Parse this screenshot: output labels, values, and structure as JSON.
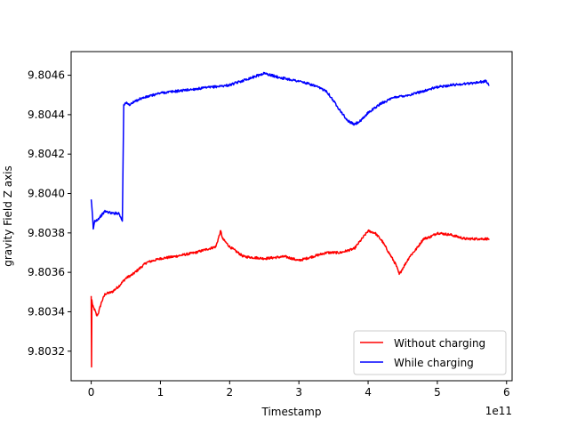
{
  "chart_data": {
    "type": "line",
    "title": "",
    "xlabel": "Timestamp",
    "ylabel": "gravity Field Z axis",
    "x_offset_label": "1e11",
    "xlim": [
      -0.29,
      6.08
    ],
    "ylim": [
      9.80305,
      9.80472
    ],
    "xticks": [
      0,
      1,
      2,
      3,
      4,
      5,
      6
    ],
    "xtick_labels": [
      "0",
      "1",
      "2",
      "3",
      "4",
      "5",
      "6"
    ],
    "yticks": [
      9.8032,
      9.8034,
      9.8036,
      9.8038,
      9.804,
      9.8042,
      9.8044,
      9.8046
    ],
    "ytick_labels": [
      "9.8032",
      "9.8034",
      "9.8036",
      "9.8038",
      "9.8040",
      "9.8042",
      "9.8044",
      "9.8046"
    ],
    "grid": false,
    "legend_position": "lower-right",
    "series": [
      {
        "name": "Without charging",
        "color": "#ff0000",
        "noise": 6e-06,
        "x": [
          0,
          0.005,
          0.01,
          0.02,
          0.05,
          0.08,
          0.1,
          0.15,
          0.2,
          0.3,
          0.4,
          0.5,
          0.6,
          0.7,
          0.8,
          1.0,
          1.2,
          1.5,
          1.8,
          1.87,
          1.9,
          2.0,
          2.2,
          2.5,
          2.8,
          3.0,
          3.2,
          3.4,
          3.6,
          3.8,
          4.0,
          4.1,
          4.2,
          4.3,
          4.4,
          4.45,
          4.5,
          4.6,
          4.7,
          4.8,
          4.9,
          5.0,
          5.2,
          5.4,
          5.6,
          5.75
        ],
        "y": [
          9.80348,
          9.80312,
          9.80346,
          9.80343,
          9.80341,
          9.80338,
          9.80339,
          9.80345,
          9.80349,
          9.8035,
          9.80353,
          9.80357,
          9.80359,
          9.80362,
          9.80365,
          9.80367,
          9.80368,
          9.8037,
          9.80373,
          9.80381,
          9.80377,
          9.80373,
          9.80368,
          9.80367,
          9.80368,
          9.80366,
          9.80368,
          9.8037,
          9.8037,
          9.80372,
          9.80381,
          9.8038,
          9.80376,
          9.8037,
          9.80364,
          9.80359,
          9.80362,
          9.80368,
          9.80372,
          9.80377,
          9.80378,
          9.8038,
          9.80379,
          9.80377,
          9.80377,
          9.80377
        ]
      },
      {
        "name": "While charging",
        "color": "#0000ff",
        "noise": 6e-06,
        "x": [
          0,
          0.02,
          0.03,
          0.05,
          0.1,
          0.2,
          0.3,
          0.35,
          0.4,
          0.45,
          0.47,
          0.5,
          0.55,
          0.7,
          1.0,
          1.5,
          2.0,
          2.5,
          2.7,
          3.0,
          3.2,
          3.4,
          3.6,
          3.7,
          3.8,
          3.9,
          4.0,
          4.2,
          4.4,
          4.6,
          4.8,
          5.0,
          5.2,
          5.5,
          5.7,
          5.75
        ],
        "y": [
          9.80397,
          9.80388,
          9.80382,
          9.80386,
          9.80387,
          9.80391,
          9.8039,
          9.8039,
          9.8039,
          9.80386,
          9.80445,
          9.80446,
          9.80445,
          9.80448,
          9.80451,
          9.80453,
          9.80455,
          9.80461,
          9.80459,
          9.80457,
          9.80455,
          9.80452,
          9.80442,
          9.80437,
          9.80435,
          9.80437,
          9.80441,
          9.80446,
          9.80449,
          9.8045,
          9.80452,
          9.80454,
          9.80455,
          9.80456,
          9.80457,
          9.80455
        ]
      }
    ]
  }
}
